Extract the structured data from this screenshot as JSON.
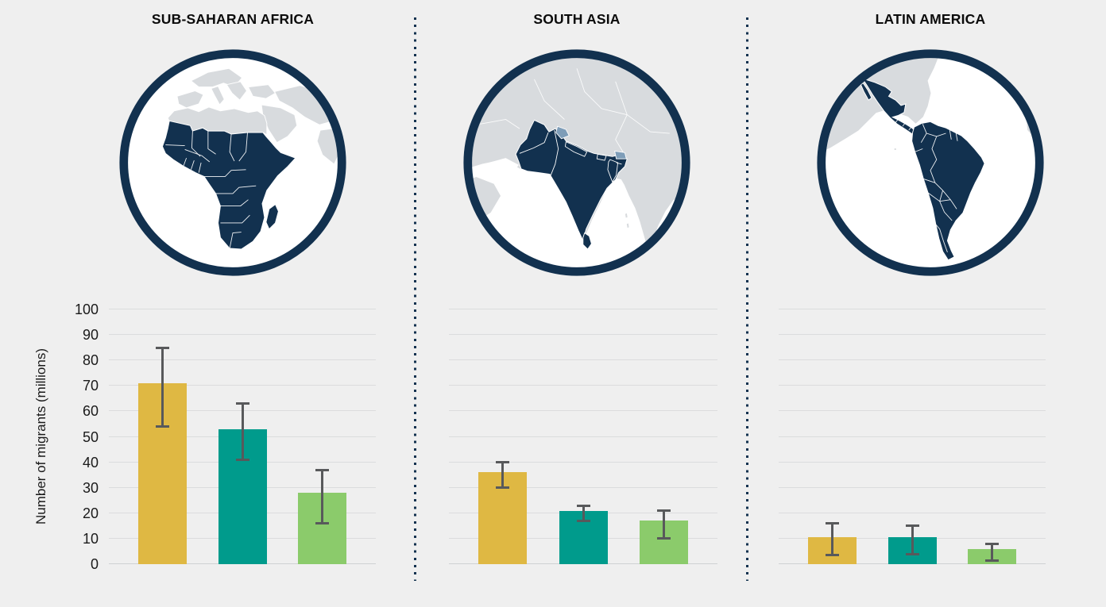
{
  "colors": {
    "background": "#efefef",
    "navy": "#12314f",
    "map_land_gray": "#d8dbde",
    "map_ocean": "#ffffff",
    "map_highlight_secondary": "#7e9db8",
    "gold": "#dfb843",
    "teal": "#009b8c",
    "green": "#8bcb6b",
    "error_bar": "#58595b",
    "gridline": "#dbdcdd",
    "text": "#1a1a1a"
  },
  "y_axis": {
    "title": "Number of migrants (millions)",
    "ticks": [
      0,
      10,
      20,
      30,
      40,
      50,
      60,
      70,
      80,
      90,
      100
    ],
    "min": 0,
    "max": 100
  },
  "panels": [
    {
      "title": "SUB-SAHARAN AFRICA",
      "map": "africa-highlight-map"
    },
    {
      "title": "SOUTH ASIA",
      "map": "south-asia-highlight-map"
    },
    {
      "title": "LATIN AMERICA",
      "map": "latin-america-highlight-map"
    }
  ],
  "chart_data": [
    {
      "type": "bar",
      "title": "SUB-SAHARAN AFRICA",
      "xlabel": "",
      "ylabel": "Number of migrants (millions)",
      "ylim": [
        0,
        100
      ],
      "grid": true,
      "legend": "none",
      "bars": [
        {
          "series": "gold",
          "value": 71,
          "ci_low": 54,
          "ci_high": 85
        },
        {
          "series": "teal",
          "value": 53,
          "ci_low": 41,
          "ci_high": 63
        },
        {
          "series": "green",
          "value": 28,
          "ci_low": 16,
          "ci_high": 37
        }
      ]
    },
    {
      "type": "bar",
      "title": "SOUTH ASIA",
      "xlabel": "",
      "ylabel": "Number of migrants (millions)",
      "ylim": [
        0,
        100
      ],
      "grid": true,
      "legend": "none",
      "bars": [
        {
          "series": "gold",
          "value": 36,
          "ci_low": 30,
          "ci_high": 40
        },
        {
          "series": "teal",
          "value": 21,
          "ci_low": 17,
          "ci_high": 23
        },
        {
          "series": "green",
          "value": 17,
          "ci_low": 10,
          "ci_high": 21
        }
      ]
    },
    {
      "type": "bar",
      "title": "LATIN AMERICA",
      "xlabel": "",
      "ylabel": "Number of migrants (millions)",
      "ylim": [
        0,
        100
      ],
      "grid": true,
      "legend": "none",
      "bars": [
        {
          "series": "gold",
          "value": 10.5,
          "ci_low": 3.5,
          "ci_high": 16
        },
        {
          "series": "teal",
          "value": 10.5,
          "ci_low": 4,
          "ci_high": 15
        },
        {
          "series": "green",
          "value": 6,
          "ci_low": 1.5,
          "ci_high": 8
        }
      ]
    }
  ]
}
